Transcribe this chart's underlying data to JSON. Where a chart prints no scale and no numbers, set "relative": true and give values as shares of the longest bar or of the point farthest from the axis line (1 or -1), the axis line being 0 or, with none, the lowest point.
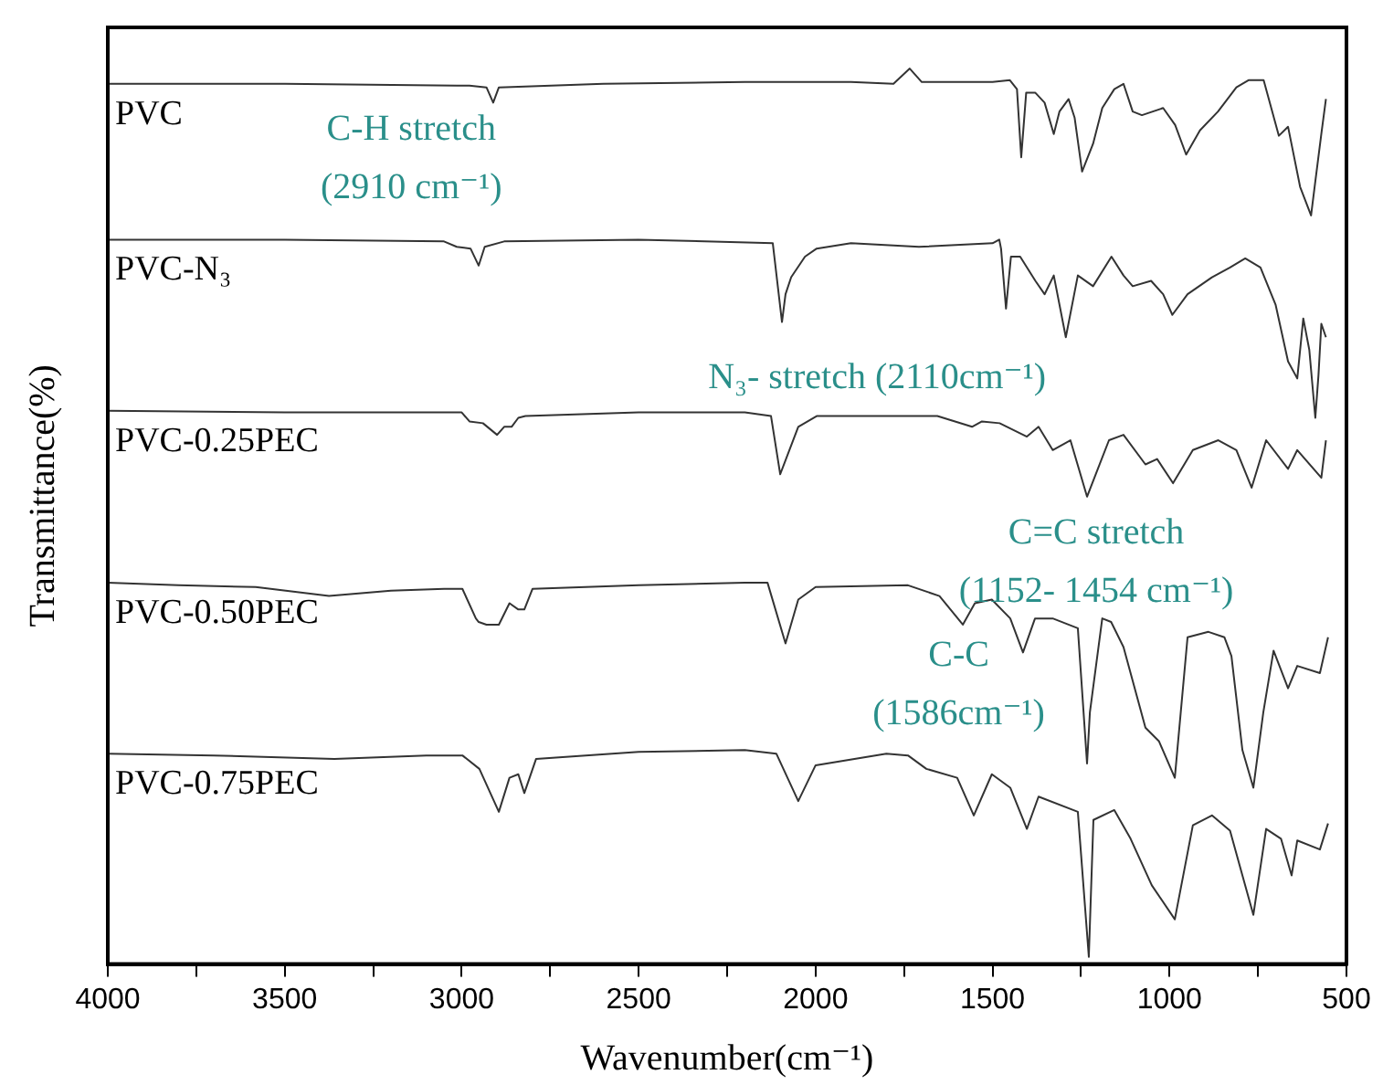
{
  "chart_data": {
    "type": "line",
    "relative": true,
    "xlabel": "Wavenumber(cm⁻¹)",
    "ylabel": "Transmittance(%)",
    "xlim": [
      4000,
      500
    ],
    "xticks": [
      4000,
      {
        "value": 3750,
        "label": null
      },
      3500,
      {
        "value": 3250,
        "label": null
      },
      3000,
      {
        "value": 2750,
        "label": null
      },
      2500,
      {
        "value": 2250,
        "label": null
      },
      2000,
      {
        "value": 1750,
        "label": null
      },
      1500,
      {
        "value": 1250,
        "label": null
      },
      1000,
      {
        "value": 750,
        "label": null
      },
      500
    ],
    "grid": false,
    "legend": false,
    "annotations": [
      "C-H stretch\n(2910 cm⁻¹)",
      "N₃- stretch (2110cm⁻¹)",
      "C=C stretch\n(1152- 1454 cm⁻¹)",
      "C-C\n(1586cm⁻¹)"
    ],
    "series": [
      {
        "name": "PVC",
        "color": "#333333",
        "x": [
          4000,
          3500,
          3014,
          2978,
          2930,
          2911,
          2895,
          2600,
          2200,
          1900,
          1780,
          1734,
          1700,
          1500,
          1451,
          1431,
          1419,
          1405,
          1379,
          1353,
          1327,
          1311,
          1285,
          1268,
          1247,
          1216,
          1190,
          1156,
          1130,
          1104,
          1078,
          1018,
          984,
          953,
          914,
          863,
          811,
          777,
          734,
          691,
          665,
          631,
          600,
          588,
          571,
          558
        ],
        "values": [
          0.983,
          0.983,
          0.981,
          0.981,
          0.979,
          0.962,
          0.979,
          0.983,
          0.985,
          0.985,
          0.983,
          1.0,
          0.985,
          0.985,
          0.987,
          0.977,
          0.901,
          0.973,
          0.973,
          0.962,
          0.927,
          0.952,
          0.966,
          0.945,
          0.885,
          0.916,
          0.956,
          0.977,
          0.983,
          0.952,
          0.948,
          0.956,
          0.937,
          0.904,
          0.931,
          0.952,
          0.979,
          0.987,
          0.987,
          0.925,
          0.935,
          0.868,
          0.836,
          0.874,
          0.927,
          0.966
        ]
      },
      {
        "name": "PVC-N₃",
        "color": "#333333",
        "x": [
          4000,
          3500,
          3050,
          3014,
          2975,
          2952,
          2935,
          2880,
          2500,
          2121,
          2095,
          2085,
          2069,
          2030,
          1997,
          1900,
          1708,
          1500,
          1481,
          1476,
          1462,
          1448,
          1422,
          1379,
          1353,
          1327,
          1293,
          1259,
          1216,
          1164,
          1130,
          1104,
          1052,
          1018,
          992,
          949,
          880,
          829,
          786,
          743,
          700,
          665,
          639,
          622,
          605,
          588,
          579,
          571,
          558
        ],
        "values": [
          0.809,
          0.809,
          0.807,
          0.801,
          0.799,
          0.78,
          0.801,
          0.807,
          0.809,
          0.805,
          0.717,
          0.748,
          0.767,
          0.79,
          0.799,
          0.805,
          0.801,
          0.805,
          0.809,
          0.799,
          0.732,
          0.79,
          0.79,
          0.763,
          0.748,
          0.769,
          0.7,
          0.769,
          0.757,
          0.79,
          0.769,
          0.757,
          0.763,
          0.748,
          0.725,
          0.748,
          0.767,
          0.778,
          0.788,
          0.778,
          0.736,
          0.673,
          0.654,
          0.721,
          0.686,
          0.61,
          0.658,
          0.715,
          0.7
        ]
      },
      {
        "name": "PVC-0.25PEC",
        "color": "#333333",
        "x": [
          4000,
          3500,
          3000,
          2978,
          2940,
          2900,
          2880,
          2859,
          2840,
          2820,
          2500,
          2200,
          2126,
          2100,
          2049,
          1997,
          1656,
          1558,
          1530,
          1480,
          1403,
          1370,
          1330,
          1280,
          1233,
          1171,
          1130,
          1068,
          1035,
          990,
          934,
          862,
          811,
          768,
          727,
          665,
          639,
          571,
          558
        ],
        "values": [
          0.618,
          0.616,
          0.616,
          0.606,
          0.604,
          0.591,
          0.6,
          0.6,
          0.61,
          0.612,
          0.616,
          0.616,
          0.612,
          0.547,
          0.6,
          0.612,
          0.612,
          0.6,
          0.606,
          0.604,
          0.589,
          0.6,
          0.574,
          0.585,
          0.522,
          0.585,
          0.591,
          0.558,
          0.564,
          0.537,
          0.574,
          0.585,
          0.574,
          0.532,
          0.585,
          0.553,
          0.574,
          0.543,
          0.585
        ]
      },
      {
        "name": "PVC-0.50PEC",
        "color": "#333333",
        "x": [
          4000,
          3800,
          3582,
          3375,
          3200,
          3050,
          2998,
          2960,
          2952,
          2930,
          2895,
          2865,
          2840,
          2823,
          2800,
          2500,
          2200,
          2136,
          2085,
          2049,
          2000,
          1739,
          1650,
          1584,
          1550,
          1502,
          1450,
          1414,
          1380,
          1330,
          1259,
          1233,
          1225,
          1190,
          1165,
          1130,
          1068,
          1030,
          985,
          949,
          890,
          845,
          825,
          794,
          763,
          735,
          706,
          665,
          639,
          575,
          552
        ],
        "values": [
          0.426,
          0.423,
          0.421,
          0.411,
          0.417,
          0.419,
          0.419,
          0.386,
          0.382,
          0.379,
          0.379,
          0.403,
          0.396,
          0.396,
          0.419,
          0.423,
          0.426,
          0.426,
          0.358,
          0.407,
          0.421,
          0.423,
          0.411,
          0.379,
          0.403,
          0.407,
          0.386,
          0.348,
          0.386,
          0.386,
          0.375,
          0.224,
          0.281,
          0.386,
          0.382,
          0.354,
          0.264,
          0.249,
          0.208,
          0.365,
          0.371,
          0.365,
          0.344,
          0.239,
          0.197,
          0.281,
          0.35,
          0.308,
          0.333,
          0.325,
          0.365
        ]
      },
      {
        "name": "PVC-0.75PEC",
        "color": "#333333",
        "x": [
          4000,
          3700,
          3360,
          3100,
          2998,
          2950,
          2895,
          2865,
          2840,
          2823,
          2790,
          2500,
          2200,
          2111,
          2049,
          2000,
          1800,
          1739,
          1687,
          1600,
          1553,
          1502,
          1450,
          1403,
          1370,
          1259,
          1228,
          1215,
          1156,
          1110,
          1050,
          985,
          934,
          880,
          829,
          794,
          763,
          727,
          685,
          655,
          639,
          575,
          552
        ],
        "values": [
          0.235,
          0.233,
          0.229,
          0.233,
          0.233,
          0.218,
          0.17,
          0.208,
          0.212,
          0.191,
          0.229,
          0.237,
          0.239,
          0.235,
          0.182,
          0.222,
          0.235,
          0.233,
          0.218,
          0.208,
          0.166,
          0.212,
          0.197,
          0.151,
          0.187,
          0.17,
          0.008,
          0.161,
          0.172,
          0.14,
          0.088,
          0.05,
          0.155,
          0.166,
          0.149,
          0.099,
          0.055,
          0.151,
          0.14,
          0.099,
          0.138,
          0.128,
          0.157
        ]
      }
    ]
  }
}
